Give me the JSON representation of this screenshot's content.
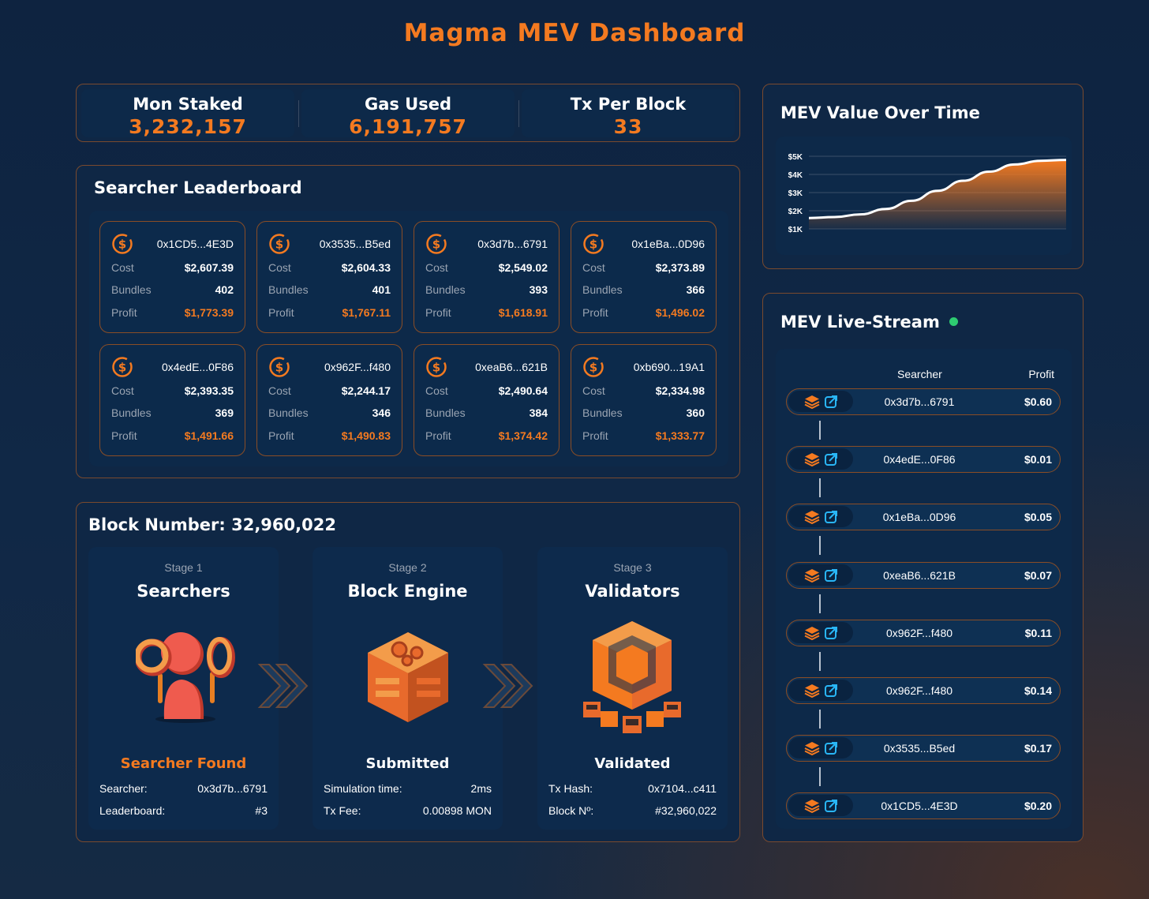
{
  "title": "Magma MEV Dashboard",
  "stats": [
    {
      "label": "Mon Staked",
      "value": "3,232,157"
    },
    {
      "label": "Gas Used",
      "value": "6,191,757"
    },
    {
      "label": "Tx Per Block",
      "value": "33"
    }
  ],
  "leaderboard": {
    "title": "Searcher Leaderboard",
    "labels": {
      "cost": "Cost",
      "bundles": "Bundles",
      "profit": "Profit"
    },
    "cards": [
      {
        "address": "0x1CD5...4E3D",
        "cost": "$2,607.39",
        "bundles": "402",
        "profit": "$1,773.39"
      },
      {
        "address": "0x3535...B5ed",
        "cost": "$2,604.33",
        "bundles": "401",
        "profit": "$1,767.11"
      },
      {
        "address": "0x3d7b...6791",
        "cost": "$2,549.02",
        "bundles": "393",
        "profit": "$1,618.91"
      },
      {
        "address": "0x1eBa...0D96",
        "cost": "$2,373.89",
        "bundles": "366",
        "profit": "$1,496.02"
      },
      {
        "address": "0x4edE...0F86",
        "cost": "$2,393.35",
        "bundles": "369",
        "profit": "$1,491.66"
      },
      {
        "address": "0x962F...f480",
        "cost": "$2,244.17",
        "bundles": "346",
        "profit": "$1,490.83"
      },
      {
        "address": "0xeaB6...621B",
        "cost": "$2,490.64",
        "bundles": "384",
        "profit": "$1,374.42"
      },
      {
        "address": "0xb690...19A1",
        "cost": "$2,334.98",
        "bundles": "360",
        "profit": "$1,333.77"
      }
    ]
  },
  "block": {
    "title": "Block Number: 32,960,022",
    "stages": [
      {
        "stage": "Stage 1",
        "name": "Searchers",
        "status": "Searcher Found",
        "rows": [
          {
            "k": "Searcher:",
            "v": "0x3d7b...6791"
          },
          {
            "k": "Leaderboard:",
            "v": "#3"
          }
        ]
      },
      {
        "stage": "Stage 2",
        "name": "Block Engine",
        "status": "Submitted",
        "rows": [
          {
            "k": "Simulation time:",
            "v": "2ms"
          },
          {
            "k": "Tx Fee:",
            "v": "0.00898 MON"
          }
        ]
      },
      {
        "stage": "Stage 3",
        "name": "Validators",
        "status": "Validated",
        "rows": [
          {
            "k": "Tx Hash:",
            "v": "0x7104...c411"
          },
          {
            "k": "Block Nº:",
            "v": "#32,960,022"
          }
        ]
      }
    ]
  },
  "chart_panel": {
    "title": "MEV Value Over Time"
  },
  "chart_data": {
    "type": "area",
    "title": "MEV Value Over Time",
    "yticks": [
      "$5K",
      "$4K",
      "$3K",
      "$2K",
      "$1K"
    ],
    "ylim": [
      1000,
      5000
    ],
    "values": [
      1600,
      1650,
      1800,
      2100,
      2550,
      3100,
      3650,
      4150,
      4550,
      4750,
      4800
    ],
    "grid": true,
    "colors": {
      "line": "#ffffff",
      "fill": "#f47a20"
    }
  },
  "livestream": {
    "title": "MEV Live-Stream",
    "status_color": "#2ecc71",
    "headers": {
      "searcher": "Searcher",
      "profit": "Profit"
    },
    "rows": [
      {
        "address": "0x3d7b...6791",
        "profit": "$0.60"
      },
      {
        "address": "0x4edE...0F86",
        "profit": "$0.01"
      },
      {
        "address": "0x1eBa...0D96",
        "profit": "$0.05"
      },
      {
        "address": "0xeaB6...621B",
        "profit": "$0.07"
      },
      {
        "address": "0x962F...f480",
        "profit": "$0.11"
      },
      {
        "address": "0x962F...f480",
        "profit": "$0.14"
      },
      {
        "address": "0x3535...B5ed",
        "profit": "$0.17"
      },
      {
        "address": "0x1CD5...4E3D",
        "profit": "$0.20"
      }
    ]
  },
  "colors": {
    "accent": "#f47a20",
    "panel_border": "#7a4a2e",
    "link_icon": "#29b6f6"
  }
}
